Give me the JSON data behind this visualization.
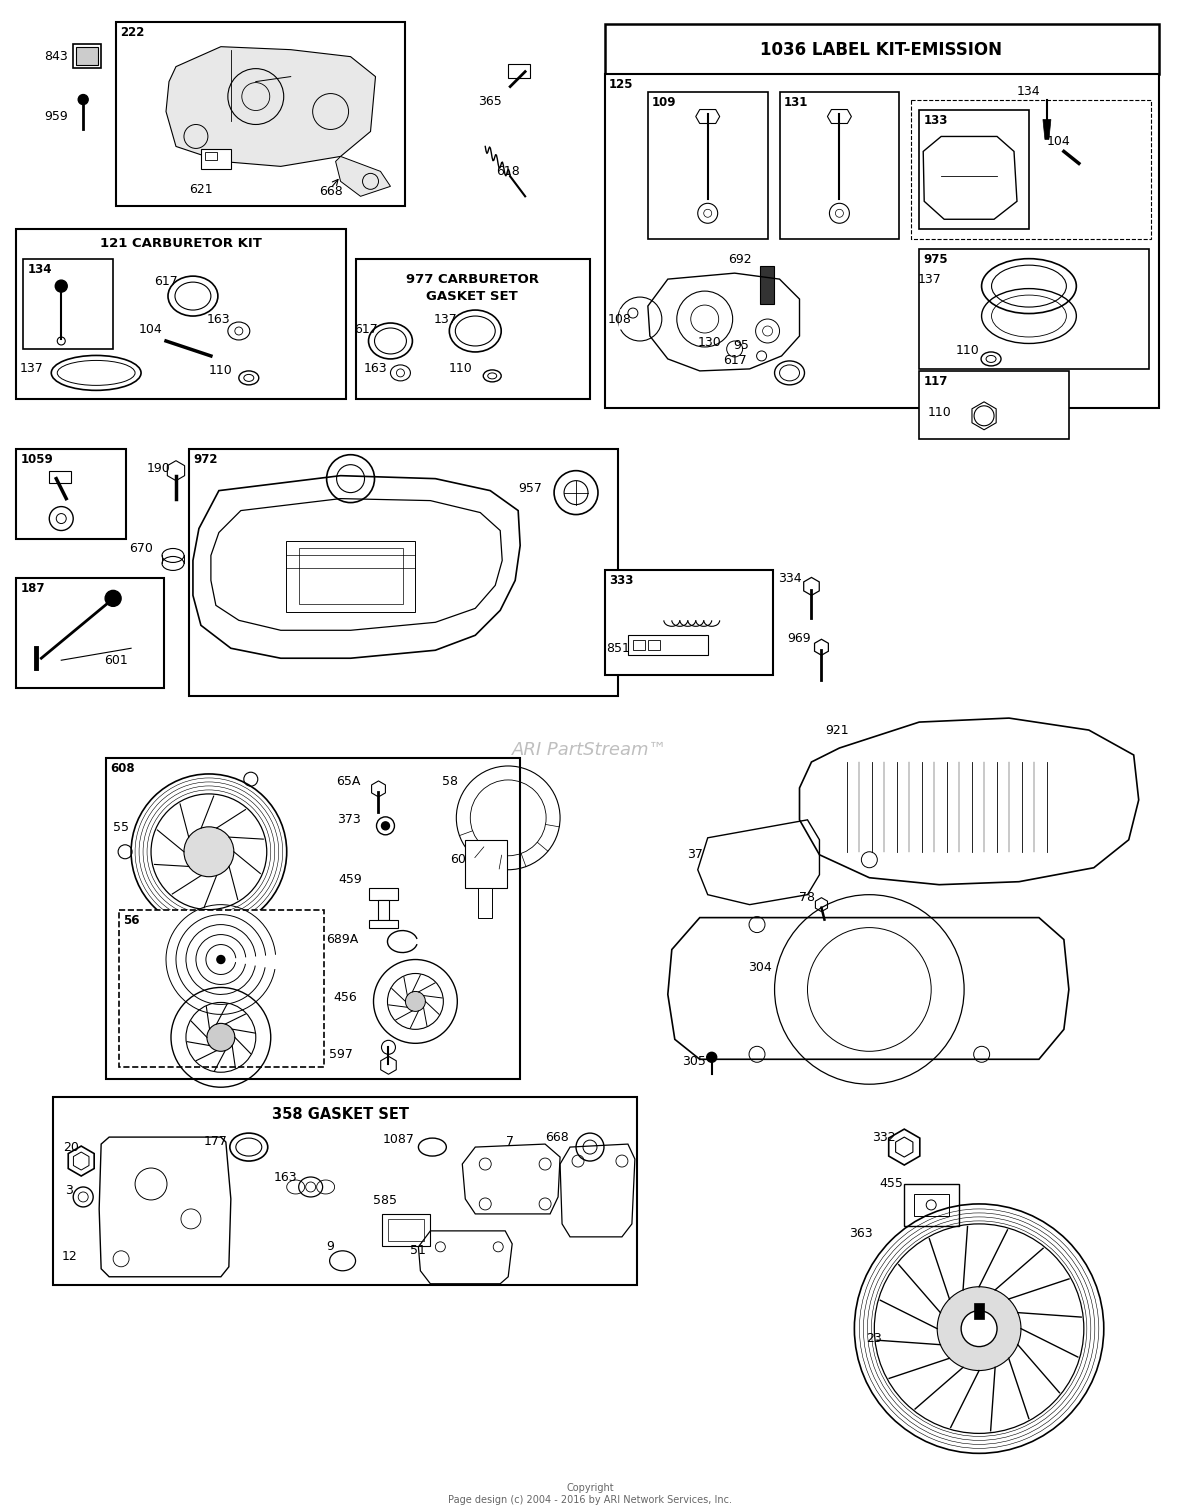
{
  "bg_color": "#ffffff",
  "watermark": "ARI PartStream™",
  "footer": "Page design (c) 2004 - 2016 by ARI Network Services, Inc.",
  "copyright": "Copyright"
}
